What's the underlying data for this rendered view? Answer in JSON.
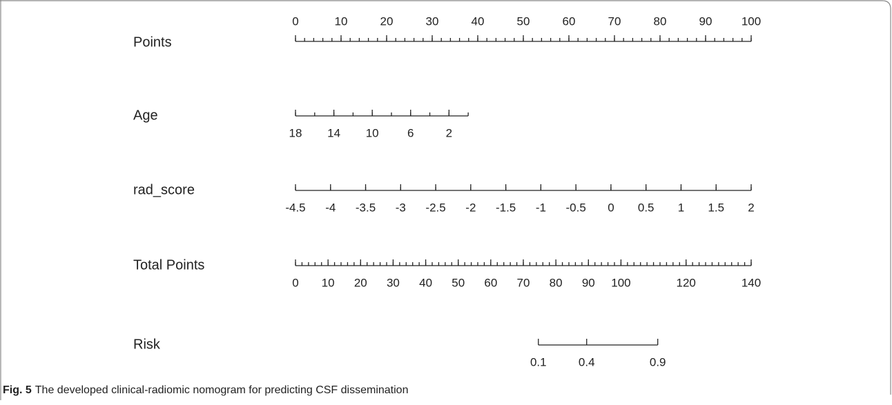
{
  "chart_data": {
    "type": "nomogram",
    "scales": [
      {
        "label": "Points",
        "lim": [
          0,
          100
        ],
        "points": [
          0,
          100
        ],
        "ticks": [
          0,
          10,
          20,
          30,
          40,
          50,
          60,
          70,
          80,
          90,
          100
        ],
        "minor_step": 2,
        "labels": "above"
      },
      {
        "label": "Age",
        "lim": [
          18,
          0
        ],
        "points": [
          0,
          37.9
        ],
        "ticks": [
          18,
          14,
          10,
          6,
          2
        ],
        "minor_step": 2,
        "labels": "below"
      },
      {
        "label": "rad_score",
        "lim": [
          -4.5,
          2
        ],
        "points": [
          0,
          100
        ],
        "ticks": [
          -4.5,
          -4,
          -3.5,
          -3,
          -2.5,
          -2,
          -1.5,
          -1,
          -0.5,
          0,
          0.5,
          1,
          1.5,
          2
        ],
        "minor_step": 0.5,
        "labels": "below"
      },
      {
        "label": "Total Points",
        "lim": [
          0,
          140
        ],
        "points": [
          0,
          100
        ],
        "ticks": [
          0,
          10,
          20,
          30,
          40,
          50,
          60,
          70,
          80,
          90,
          100,
          120,
          140
        ],
        "minor_step": 2,
        "labels": "below"
      },
      {
        "label": "Risk",
        "ticks": [
          0.1,
          0.4,
          0.9
        ],
        "tick_points": [
          53.3,
          63.9,
          79.5
        ],
        "labels": "below"
      }
    ],
    "caption": {
      "label": "Fig. 5",
      "text": "The developed clinical-radiomic nomogram for predicting CSF dissemination"
    }
  }
}
